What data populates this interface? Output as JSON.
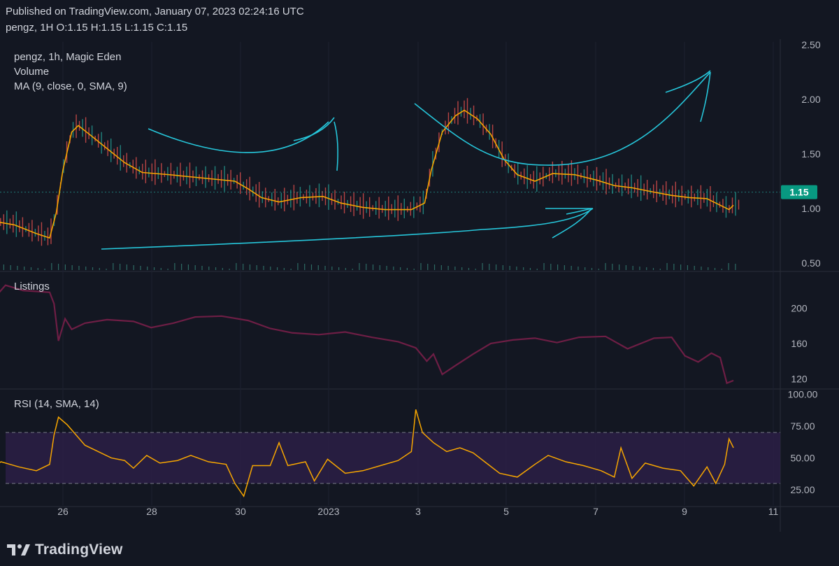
{
  "header": {
    "published": "Published on TradingView.com, January 07, 2023 02:24:16 UTC",
    "ohlc": "pengz, 1H  O:1.15  H:1.15  L:1.15  C:1.15"
  },
  "chart_data": {
    "type": "line",
    "x_axis": {
      "tick_labels": [
        "26",
        "28",
        "30",
        "2023",
        "3",
        "5",
        "7",
        "9",
        "11"
      ]
    },
    "price_pane": {
      "legend": [
        "pengz, 1h, Magic Eden",
        "Volume",
        "MA (9, close, 0, SMA, 9)"
      ],
      "y_ticks": [
        "2.50",
        "2.00",
        "1.50",
        "1.00",
        "0.50"
      ],
      "ylim": [
        0.5,
        2.5
      ],
      "last_price": "1.15",
      "ma_series": [
        [
          0.0,
          1.28
        ],
        [
          0.5,
          1.15
        ],
        [
          0.9,
          1.0
        ],
        [
          1.4,
          0.9
        ],
        [
          2.1,
          0.85
        ],
        [
          2.6,
          0.77
        ],
        [
          2.9,
          0.73
        ],
        [
          3.05,
          0.96
        ],
        [
          3.2,
          1.35
        ],
        [
          3.4,
          1.7
        ],
        [
          3.55,
          1.76
        ],
        [
          3.8,
          1.68
        ],
        [
          4.2,
          1.55
        ],
        [
          4.6,
          1.42
        ],
        [
          5.0,
          1.33
        ],
        [
          5.6,
          1.31
        ],
        [
          6.1,
          1.29
        ],
        [
          6.6,
          1.27
        ],
        [
          7.1,
          1.25
        ],
        [
          7.4,
          1.18
        ],
        [
          7.7,
          1.1
        ],
        [
          8.1,
          1.06
        ],
        [
          8.6,
          1.1
        ],
        [
          9.1,
          1.11
        ],
        [
          9.5,
          1.05
        ],
        [
          10.0,
          1.01
        ],
        [
          10.5,
          0.99
        ],
        [
          11.1,
          0.99
        ],
        [
          11.4,
          1.05
        ],
        [
          11.55,
          1.35
        ],
        [
          11.8,
          1.7
        ],
        [
          12.1,
          1.85
        ],
        [
          12.3,
          1.9
        ],
        [
          12.6,
          1.82
        ],
        [
          12.9,
          1.68
        ],
        [
          13.2,
          1.45
        ],
        [
          13.5,
          1.31
        ],
        [
          13.9,
          1.25
        ],
        [
          14.3,
          1.32
        ],
        [
          14.8,
          1.31
        ],
        [
          15.3,
          1.26
        ],
        [
          15.7,
          1.21
        ],
        [
          16.1,
          1.19
        ],
        [
          16.6,
          1.15
        ],
        [
          17.0,
          1.12
        ],
        [
          17.4,
          1.1
        ],
        [
          17.8,
          1.09
        ],
        [
          18.1,
          1.03
        ],
        [
          18.3,
          0.99
        ],
        [
          18.4,
          1.03
        ]
      ],
      "ma_color": "#f7a600",
      "annotation_color": "#26c6da"
    },
    "listings_pane": {
      "title": "Listings",
      "y_ticks": [
        "200",
        "160",
        "120"
      ],
      "ylim": [
        110,
        240
      ],
      "series": [
        [
          0.0,
          208
        ],
        [
          0.5,
          201
        ],
        [
          1.0,
          207
        ],
        [
          1.5,
          203
        ],
        [
          1.9,
          226
        ],
        [
          2.3,
          220
        ],
        [
          2.9,
          218
        ],
        [
          3.0,
          205
        ],
        [
          3.1,
          163
        ],
        [
          3.25,
          188
        ],
        [
          3.4,
          176
        ],
        [
          3.7,
          183
        ],
        [
          4.2,
          187
        ],
        [
          4.8,
          185
        ],
        [
          5.2,
          178
        ],
        [
          5.7,
          183
        ],
        [
          6.2,
          190
        ],
        [
          6.8,
          191
        ],
        [
          7.4,
          186
        ],
        [
          7.9,
          177
        ],
        [
          8.4,
          172
        ],
        [
          9.0,
          170
        ],
        [
          9.6,
          173
        ],
        [
          10.2,
          167
        ],
        [
          10.8,
          162
        ],
        [
          11.2,
          155
        ],
        [
          11.45,
          140
        ],
        [
          11.6,
          148
        ],
        [
          11.8,
          125
        ],
        [
          12.1,
          135
        ],
        [
          12.5,
          148
        ],
        [
          12.9,
          160
        ],
        [
          13.4,
          164
        ],
        [
          13.9,
          166
        ],
        [
          14.4,
          161
        ],
        [
          14.9,
          167
        ],
        [
          15.5,
          168
        ],
        [
          16.0,
          154
        ],
        [
          16.6,
          166
        ],
        [
          17.0,
          167
        ],
        [
          17.3,
          146
        ],
        [
          17.6,
          139
        ],
        [
          17.9,
          149
        ],
        [
          18.1,
          144
        ],
        [
          18.25,
          115
        ],
        [
          18.4,
          118
        ]
      ],
      "color": "#6e1e45"
    },
    "rsi_pane": {
      "title": "RSI (14, SMA, 14)",
      "y_ticks": [
        "100.00",
        "75.00",
        "50.00",
        "25.00"
      ],
      "ylim": [
        13,
        103
      ],
      "upper_band": 70,
      "lower_band": 30,
      "series": [
        [
          0.0,
          48
        ],
        [
          0.4,
          42
        ],
        [
          0.9,
          45
        ],
        [
          1.3,
          38
        ],
        [
          1.8,
          47
        ],
        [
          2.2,
          43
        ],
        [
          2.6,
          40
        ],
        [
          2.9,
          45
        ],
        [
          3.0,
          68
        ],
        [
          3.1,
          82
        ],
        [
          3.3,
          76
        ],
        [
          3.5,
          68
        ],
        [
          3.7,
          60
        ],
        [
          4.0,
          55
        ],
        [
          4.3,
          50
        ],
        [
          4.6,
          48
        ],
        [
          4.8,
          42
        ],
        [
          5.1,
          52
        ],
        [
          5.4,
          46
        ],
        [
          5.8,
          48
        ],
        [
          6.1,
          52
        ],
        [
          6.5,
          47
        ],
        [
          6.9,
          45
        ],
        [
          7.1,
          30
        ],
        [
          7.3,
          20
        ],
        [
          7.5,
          44
        ],
        [
          7.9,
          44
        ],
        [
          8.1,
          62
        ],
        [
          8.3,
          44
        ],
        [
          8.7,
          47
        ],
        [
          8.9,
          32
        ],
        [
          9.2,
          49
        ],
        [
          9.6,
          38
        ],
        [
          10.0,
          40
        ],
        [
          10.4,
          44
        ],
        [
          10.8,
          48
        ],
        [
          11.1,
          55
        ],
        [
          11.2,
          88
        ],
        [
          11.35,
          70
        ],
        [
          11.6,
          62
        ],
        [
          11.9,
          55
        ],
        [
          12.2,
          58
        ],
        [
          12.5,
          54
        ],
        [
          12.8,
          46
        ],
        [
          13.1,
          38
        ],
        [
          13.5,
          35
        ],
        [
          13.9,
          45
        ],
        [
          14.2,
          52
        ],
        [
          14.6,
          47
        ],
        [
          15.0,
          44
        ],
        [
          15.4,
          40
        ],
        [
          15.7,
          35
        ],
        [
          15.85,
          58
        ],
        [
          16.1,
          34
        ],
        [
          16.4,
          46
        ],
        [
          16.8,
          42
        ],
        [
          17.2,
          40
        ],
        [
          17.5,
          28
        ],
        [
          17.8,
          43
        ],
        [
          18.0,
          30
        ],
        [
          18.2,
          45
        ],
        [
          18.3,
          65
        ],
        [
          18.4,
          58
        ]
      ],
      "color": "#f7a600",
      "band_fill": "#2b1f45"
    }
  },
  "footer": {
    "brand": "TradingView"
  }
}
